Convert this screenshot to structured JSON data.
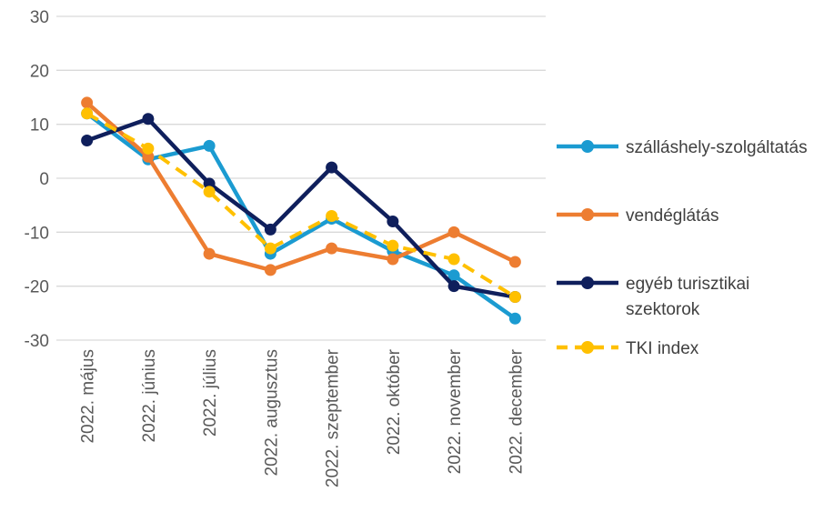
{
  "chart_data": {
    "type": "line",
    "categories": [
      "2022. május",
      "2022. június",
      "2022. július",
      "2022. augusztus",
      "2022. szeptember",
      "2022. október",
      "2022. november",
      "2022. december"
    ],
    "ylim": [
      -30,
      30
    ],
    "yticks": [
      30,
      20,
      10,
      0,
      -10,
      -20,
      -30
    ],
    "grid": true,
    "legend": "right",
    "series": [
      {
        "name": "szálláshely-szolgáltatás",
        "color": "#1B9BD1",
        "style": "solid",
        "values": [
          12,
          3.5,
          6,
          -14,
          -7.5,
          -13.5,
          -18,
          -26
        ]
      },
      {
        "name": "vendéglátás",
        "color": "#ED7D31",
        "style": "solid",
        "values": [
          14,
          4,
          -14,
          -17,
          -13,
          -15,
          -10,
          -15.5
        ]
      },
      {
        "name": "egyéb turisztikai szektorok",
        "name_lines": [
          "egyéb turisztikai",
          "szektorok"
        ],
        "color": "#0F1F5C",
        "style": "solid",
        "values": [
          7,
          11,
          -1,
          -9.5,
          2,
          -8,
          -20,
          -22
        ]
      },
      {
        "name": "TKI index",
        "color": "#FFC000",
        "style": "dashed",
        "values": [
          12,
          5.5,
          -2.5,
          -13,
          -7,
          -12.5,
          -15,
          -22
        ]
      }
    ]
  }
}
